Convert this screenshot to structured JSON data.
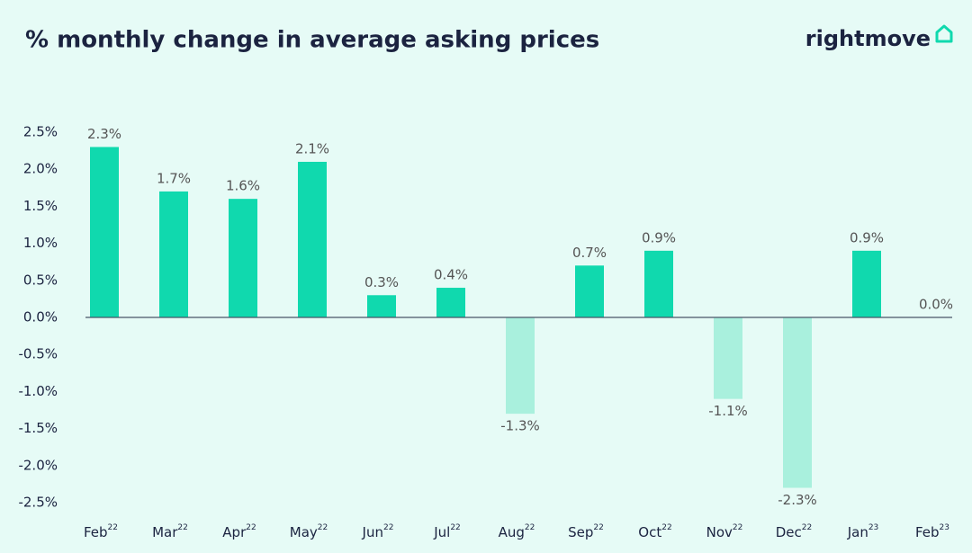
{
  "chart_data": {
    "type": "bar",
    "title": "% monthly change in average asking prices",
    "logo": "rightmove",
    "categories": [
      "Feb",
      "Mar",
      "Apr",
      "May",
      "Jun",
      "Jul",
      "Aug",
      "Sep",
      "Oct",
      "Nov",
      "Dec",
      "Jan",
      "Feb"
    ],
    "category_superscripts": [
      "22",
      "22",
      "22",
      "22",
      "22",
      "22",
      "22",
      "22",
      "22",
      "22",
      "22",
      "23",
      "23"
    ],
    "values": [
      2.3,
      1.7,
      1.6,
      2.1,
      0.3,
      0.4,
      -1.3,
      0.7,
      0.9,
      -1.1,
      -2.3,
      0.9,
      0.0
    ],
    "value_labels": [
      "2.3%",
      "1.7%",
      "1.6%",
      "2.1%",
      "0.3%",
      "0.4%",
      "-1.3%",
      "0.7%",
      "0.9%",
      "-1.1%",
      "-2.3%",
      "0.9%",
      "0.0%"
    ],
    "color": "#10d9ae",
    "negative_color": "#a9f0dd",
    "ylim": [
      -2.5,
      2.5
    ],
    "yticks": [
      {
        "value": -2.5,
        "label": "-2.5%"
      },
      {
        "value": -2.0,
        "label": "-2.0%"
      },
      {
        "value": -1.5,
        "label": "-1.5%"
      },
      {
        "value": -1.0,
        "label": "-1.0%"
      },
      {
        "value": -0.5,
        "label": "-0.5%"
      },
      {
        "value": 0.0,
        "label": "0.0%"
      },
      {
        "value": 0.5,
        "label": "0.5%"
      },
      {
        "value": 1.0,
        "label": "1.0%"
      },
      {
        "value": 1.5,
        "label": "1.5%"
      },
      {
        "value": 2.0,
        "label": "2.0%"
      },
      {
        "value": 2.5,
        "label": "2.5%"
      }
    ],
    "grid": false
  }
}
